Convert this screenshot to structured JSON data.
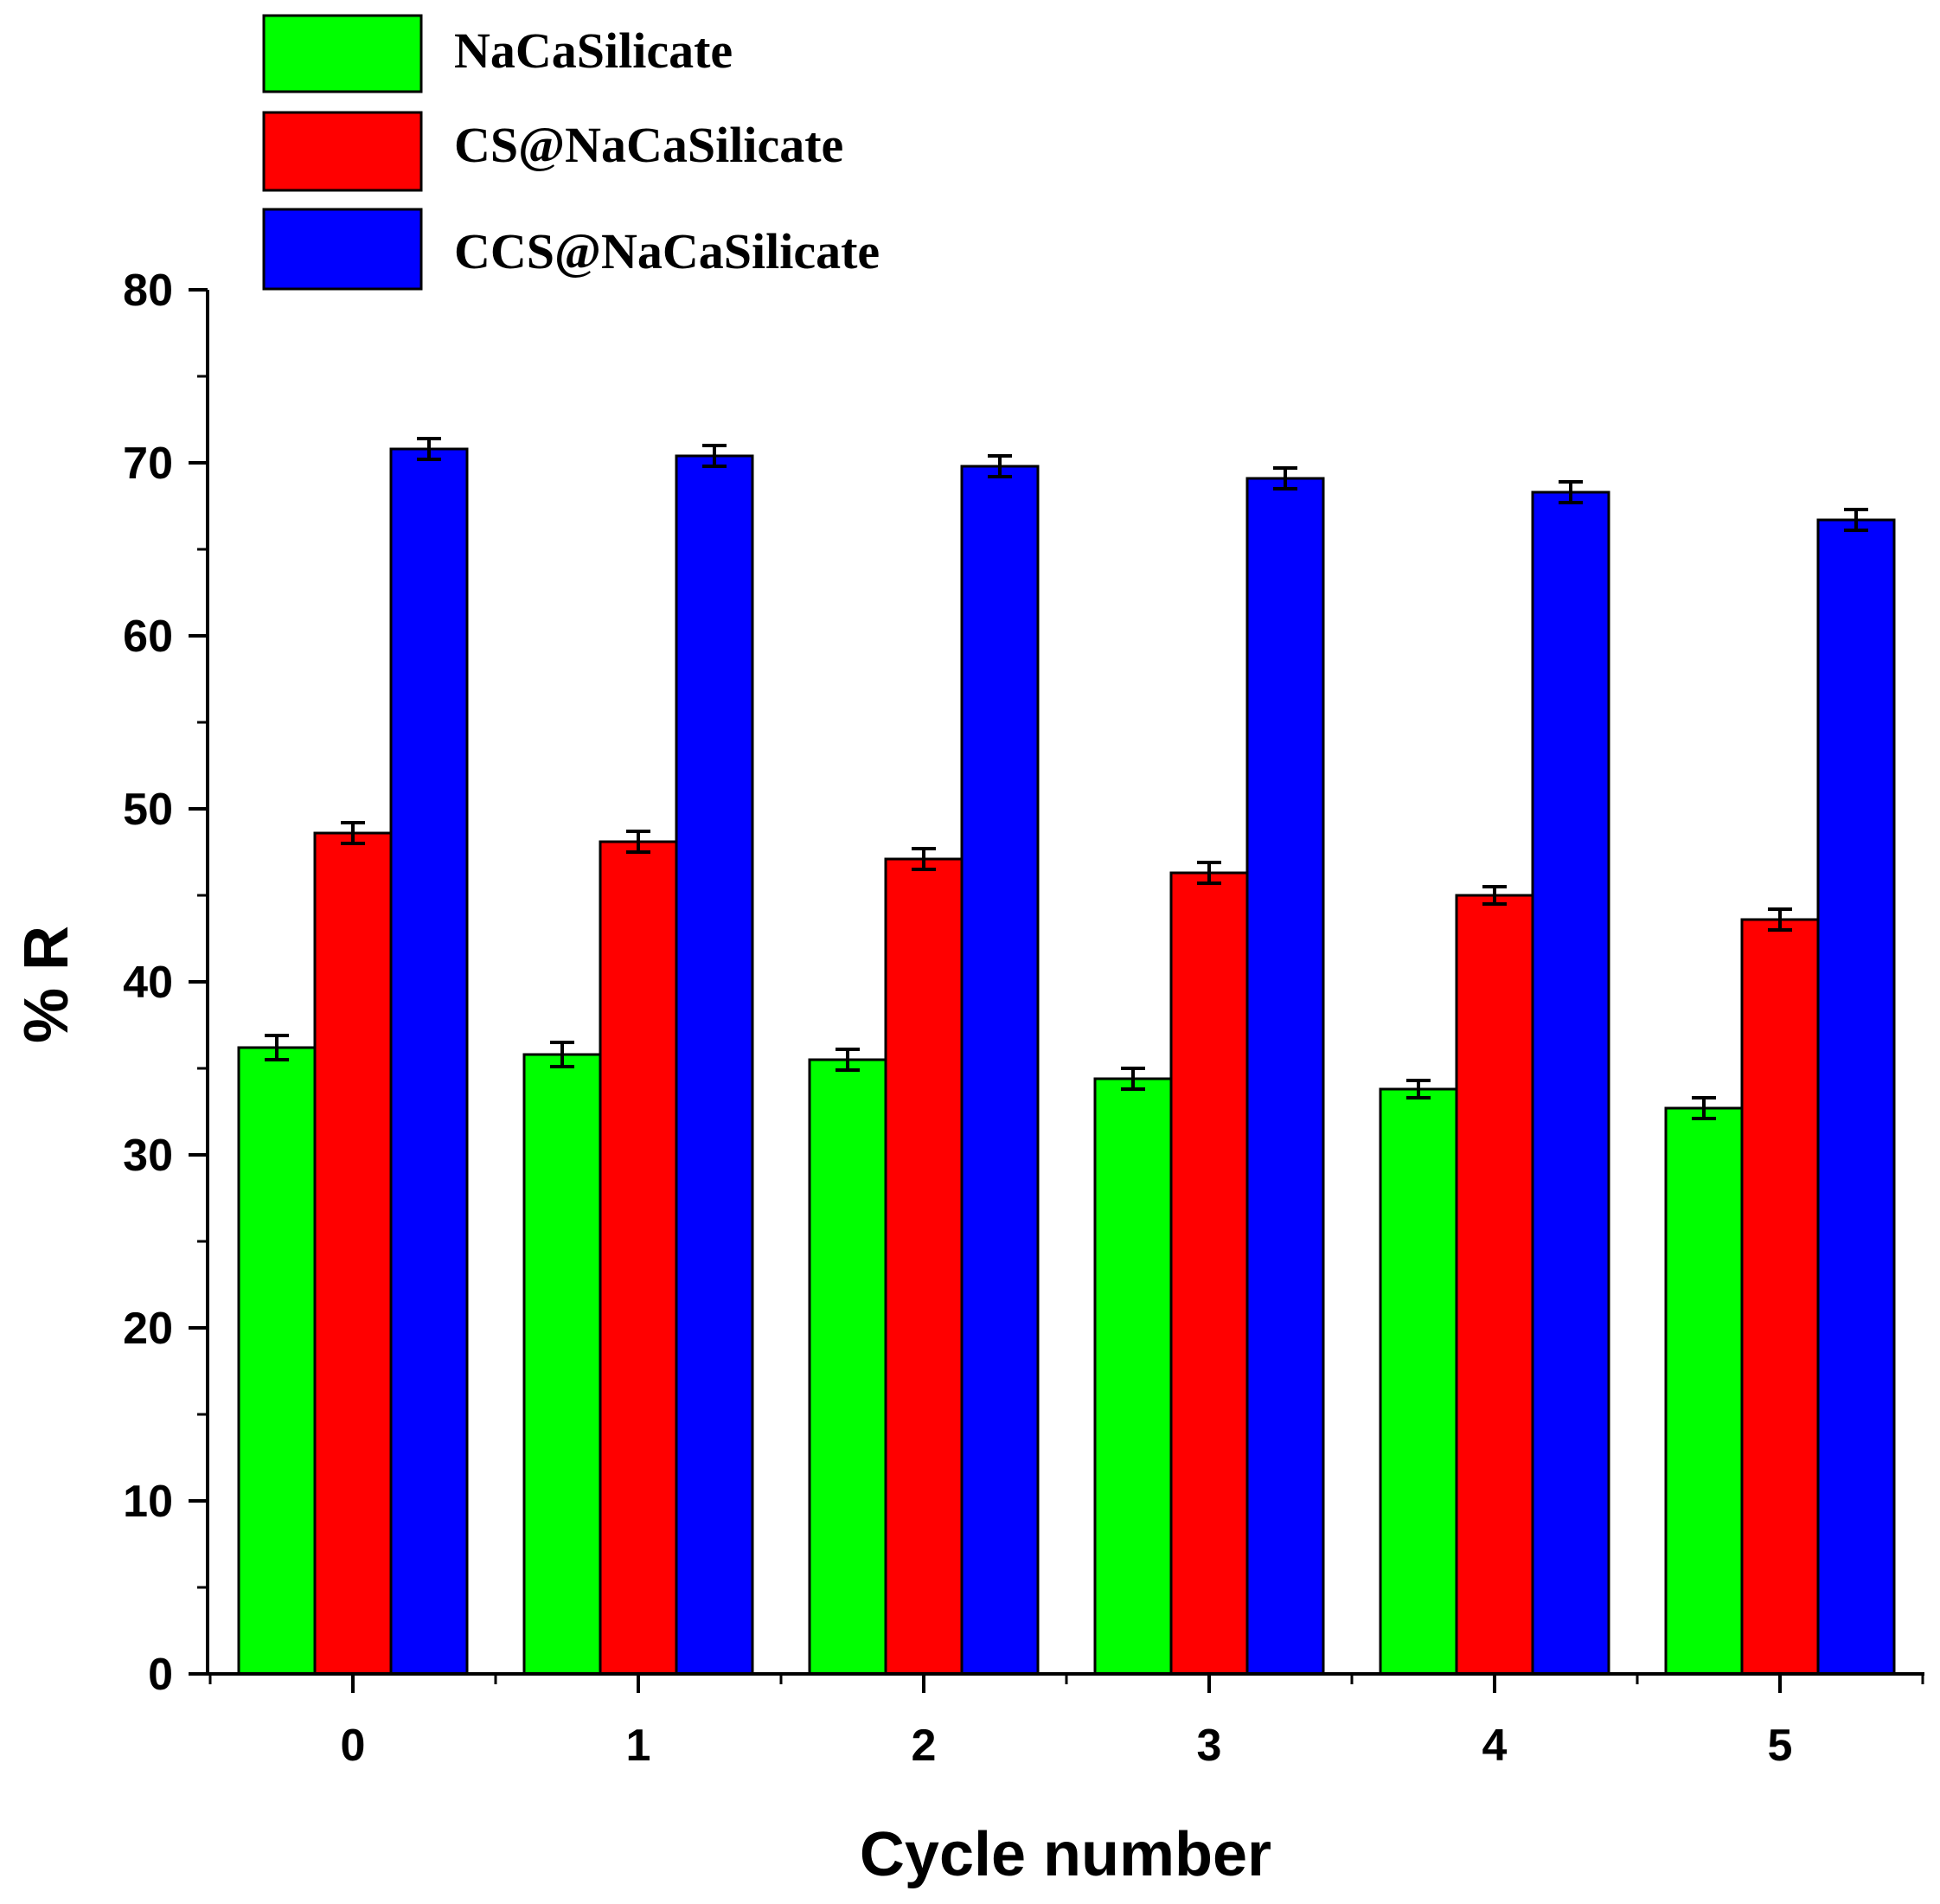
{
  "chart_data": {
    "type": "bar",
    "title": "",
    "xlabel": "Cycle number",
    "ylabel": "% R",
    "categories": [
      "0",
      "1",
      "2",
      "3",
      "4",
      "5"
    ],
    "ylim": [
      0,
      80
    ],
    "yticks": [
      "0",
      "10",
      "20",
      "30",
      "40",
      "50",
      "60",
      "70",
      "80"
    ],
    "error_bars": true,
    "legend_position": "top-left",
    "series": [
      {
        "name": "NaCaSilicate",
        "color": "#00ff00",
        "values": [
          36.2,
          35.8,
          35.5,
          34.4,
          33.8,
          32.7
        ],
        "errors": [
          0.7,
          0.7,
          0.6,
          0.6,
          0.5,
          0.6
        ]
      },
      {
        "name": "CS@NaCaSilicate",
        "color": "#ff0000",
        "values": [
          48.6,
          48.1,
          47.1,
          46.3,
          45.0,
          43.6
        ],
        "errors": [
          0.6,
          0.6,
          0.6,
          0.6,
          0.5,
          0.6
        ]
      },
      {
        "name": "CCS@NaCaSilicate",
        "color": "#0000ff",
        "values": [
          70.8,
          70.4,
          69.8,
          69.1,
          68.3,
          66.7
        ],
        "errors": [
          0.6,
          0.6,
          0.6,
          0.6,
          0.6,
          0.6
        ]
      }
    ]
  }
}
